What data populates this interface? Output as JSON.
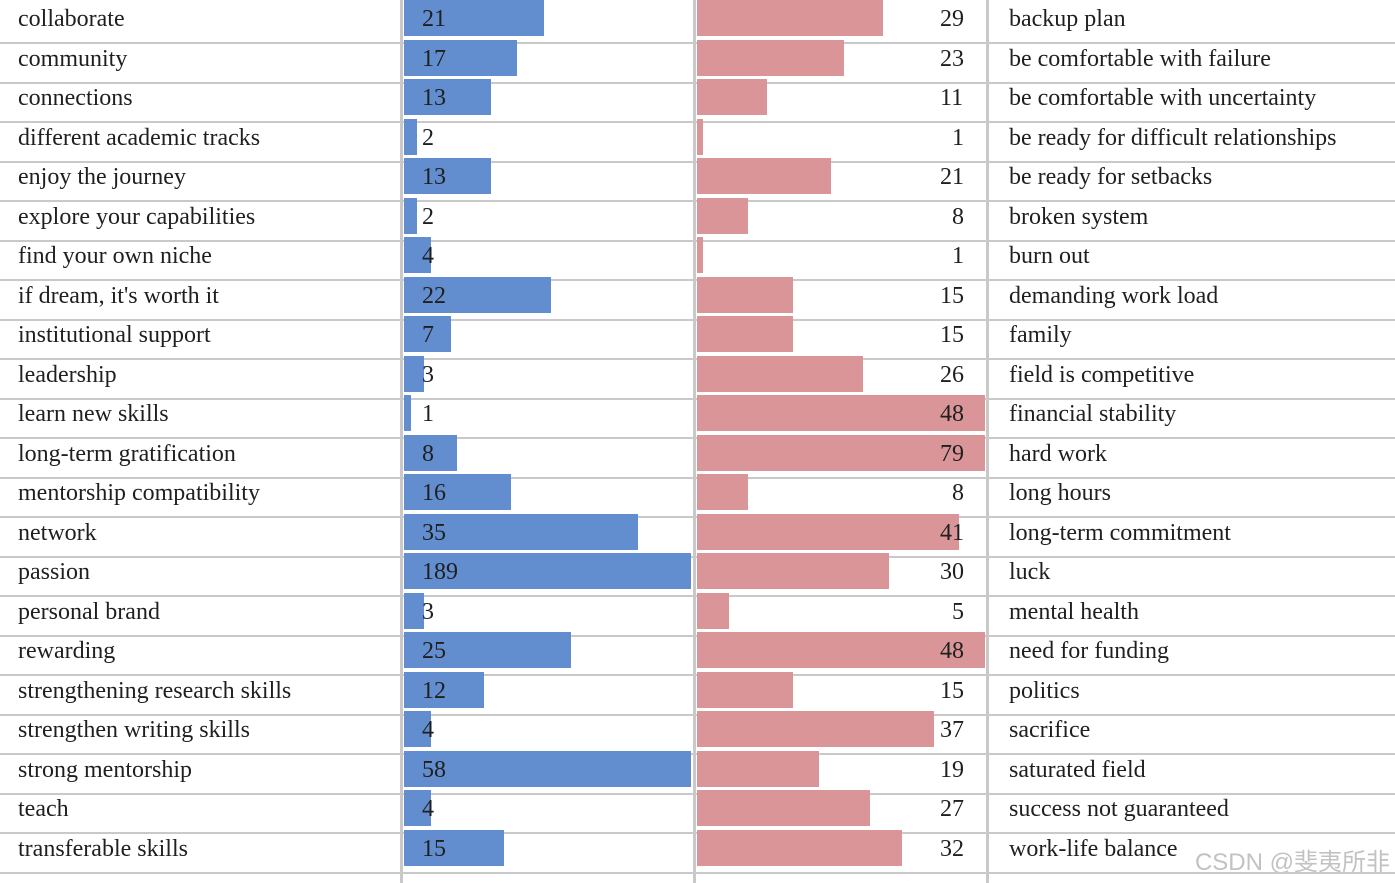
{
  "chart_data": {
    "type": "bar",
    "left_panel": {
      "categories": [
        "collaborate",
        "community",
        "connections",
        "different academic tracks",
        "enjoy the journey",
        "explore your capabilities",
        "find your own niche",
        "if dream, it's worth it",
        "institutional support",
        "leadership",
        "learn new skills",
        "long-term gratification",
        "mentorship compatibility",
        "network",
        "passion",
        "personal brand",
        "rewarding",
        "strengthening research skills",
        "strengthen writing skills",
        "strong mentorship",
        "teach",
        "transferable skills"
      ],
      "values": [
        21,
        17,
        13,
        2,
        13,
        2,
        4,
        22,
        7,
        3,
        1,
        8,
        16,
        35,
        189,
        3,
        25,
        12,
        4,
        58,
        4,
        15
      ],
      "value_labels": [
        "21",
        "17",
        "13",
        "2",
        "13",
        "2",
        "4",
        "22",
        "7",
        "3",
        "1",
        "8",
        "16",
        "35",
        "189",
        "3",
        "25",
        "12",
        "4",
        "58",
        "4",
        "15"
      ],
      "display_limit": 43,
      "color": "#628ecf"
    },
    "right_panel": {
      "categories": [
        "backup plan",
        "be comfortable with failure",
        "be comfortable with uncertainty",
        "be ready for difficult relationships",
        "be ready for setbacks",
        "broken system",
        "burn out",
        "demanding work load",
        "family",
        "field is competitive",
        "financial stability",
        "hard work",
        "long hours",
        "long-term commitment",
        "luck",
        "mental health",
        "need for funding",
        "politics",
        "sacrifice",
        "saturated field",
        "success not guaranteed",
        "work-life balance"
      ],
      "values": [
        29,
        23,
        11,
        1,
        21,
        8,
        1,
        15,
        15,
        26,
        48,
        79,
        8,
        41,
        30,
        5,
        48,
        15,
        37,
        19,
        27,
        32
      ],
      "value_labels": [
        "29",
        "23",
        "11",
        "1",
        "21",
        "8",
        "1",
        "15",
        "15",
        "26",
        "48",
        "79",
        "8",
        "41",
        "30",
        "5",
        "48",
        "15",
        "37",
        "19",
        "27",
        "32"
      ],
      "display_limit": 45,
      "color": "#da9598"
    }
  },
  "watermark": {
    "text": "CSDN @斐夷所非"
  }
}
